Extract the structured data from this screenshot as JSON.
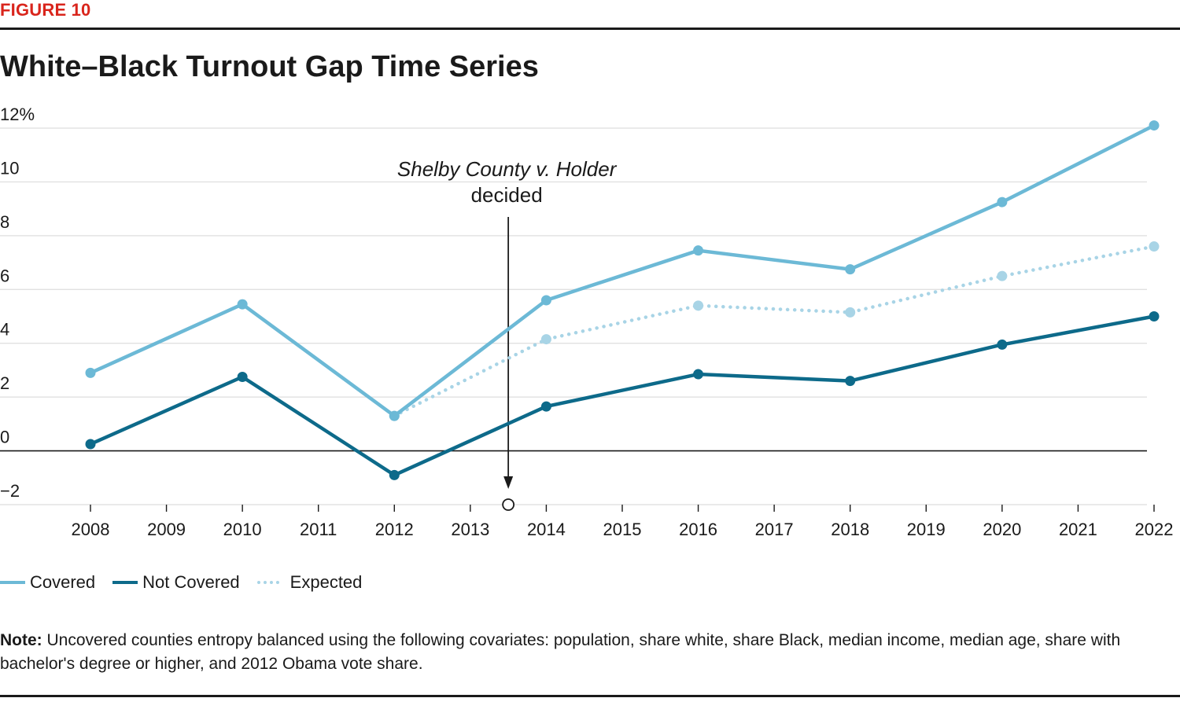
{
  "figure_label": "FIGURE 10",
  "title": "White–Black Turnout Gap Time Series",
  "note_label": "Note:",
  "note_text": " Uncovered counties entropy balanced using the following covariates: population, share white, share Black, median income, median age, share with bachelor's degree or higher, and 2012 Obama vote share.",
  "chart_data": {
    "type": "line",
    "title": "White–Black Turnout Gap Time Series",
    "xlabel": "",
    "ylabel": "",
    "xlim": [
      2008,
      2022
    ],
    "ylim": [
      -2,
      12
    ],
    "x_ticks": [
      "2008",
      "2009",
      "2010",
      "2011",
      "2012",
      "2013",
      "2014",
      "2015",
      "2016",
      "2017",
      "2018",
      "2019",
      "2020",
      "2021",
      "2022"
    ],
    "y_ticks": [
      {
        "value": 12,
        "label": "12%"
      },
      {
        "value": 10,
        "label": "10"
      },
      {
        "value": 8,
        "label": "8"
      },
      {
        "value": 6,
        "label": "6"
      },
      {
        "value": 4,
        "label": "4"
      },
      {
        "value": 2,
        "label": "2"
      },
      {
        "value": 0,
        "label": "0"
      },
      {
        "value": -2,
        "label": "−2"
      }
    ],
    "grid": true,
    "legend_position": "bottom-left",
    "series": [
      {
        "name": "Covered",
        "style": "solid",
        "color": "#6cb9d6",
        "points": [
          [
            2008,
            2.9
          ],
          [
            2010,
            5.45
          ],
          [
            2012,
            1.3
          ],
          [
            2014,
            5.6
          ],
          [
            2016,
            7.45
          ],
          [
            2018,
            6.75
          ],
          [
            2020,
            9.25
          ],
          [
            2022,
            12.1
          ]
        ]
      },
      {
        "name": "Not Covered",
        "style": "solid",
        "color": "#0d6a8a",
        "points": [
          [
            2008,
            0.25
          ],
          [
            2010,
            2.75
          ],
          [
            2012,
            -0.9
          ],
          [
            2014,
            1.65
          ],
          [
            2016,
            2.85
          ],
          [
            2018,
            2.6
          ],
          [
            2020,
            3.95
          ],
          [
            2022,
            5.0
          ]
        ]
      },
      {
        "name": "Expected",
        "style": "dotted",
        "color": "#a8d4e6",
        "points": [
          [
            2012,
            1.3
          ],
          [
            2014,
            4.15
          ],
          [
            2016,
            5.4
          ],
          [
            2018,
            5.15
          ],
          [
            2020,
            6.5
          ],
          [
            2022,
            7.6
          ]
        ]
      }
    ],
    "annotation": {
      "x": 2013.5,
      "line1": "Shelby County v. Holder",
      "line2": "decided"
    }
  }
}
